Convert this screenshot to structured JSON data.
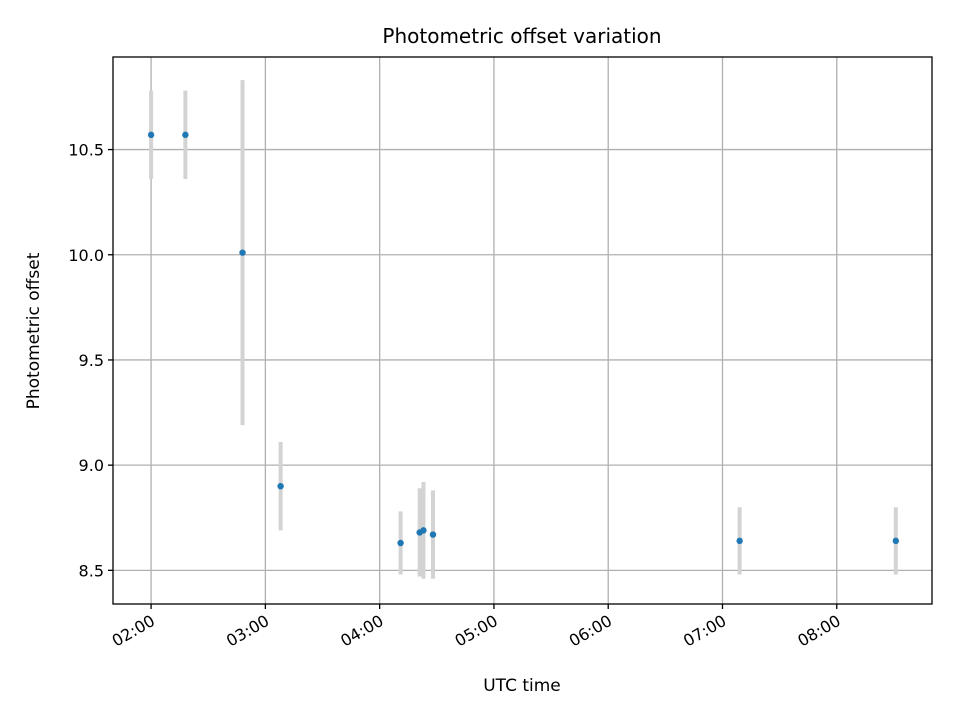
{
  "chart_data": {
    "type": "scatter",
    "title": "Photometric offset variation",
    "xlabel": "UTC time",
    "ylabel": "Photometric offset",
    "x_ticks": [
      "02:00",
      "03:00",
      "04:00",
      "05:00",
      "06:00",
      "07:00",
      "08:00"
    ],
    "y_ticks": [
      "8.5",
      "9.0",
      "9.5",
      "10.0",
      "10.5"
    ],
    "xlim": [
      "01:40",
      "08:50"
    ],
    "ylim": [
      8.34,
      10.94
    ],
    "grid": true,
    "points": [
      {
        "time": "02:00",
        "y": 10.57,
        "err": 0.21
      },
      {
        "time": "02:18",
        "y": 10.57,
        "err": 0.21
      },
      {
        "time": "02:48",
        "y": 10.01,
        "err": 0.82
      },
      {
        "time": "03:08",
        "y": 8.9,
        "err": 0.21
      },
      {
        "time": "04:11",
        "y": 8.63,
        "err": 0.15
      },
      {
        "time": "04:21",
        "y": 8.68,
        "err": 0.21
      },
      {
        "time": "04:23",
        "y": 8.69,
        "err": 0.23
      },
      {
        "time": "04:28",
        "y": 8.67,
        "err": 0.21
      },
      {
        "time": "07:09",
        "y": 8.64,
        "err": 0.16
      },
      {
        "time": "08:31",
        "y": 8.64,
        "err": 0.16
      }
    ],
    "colors": {
      "point": "#1f77b4",
      "error_bar": "#d3d3d3",
      "grid": "#b0b0b0"
    }
  }
}
